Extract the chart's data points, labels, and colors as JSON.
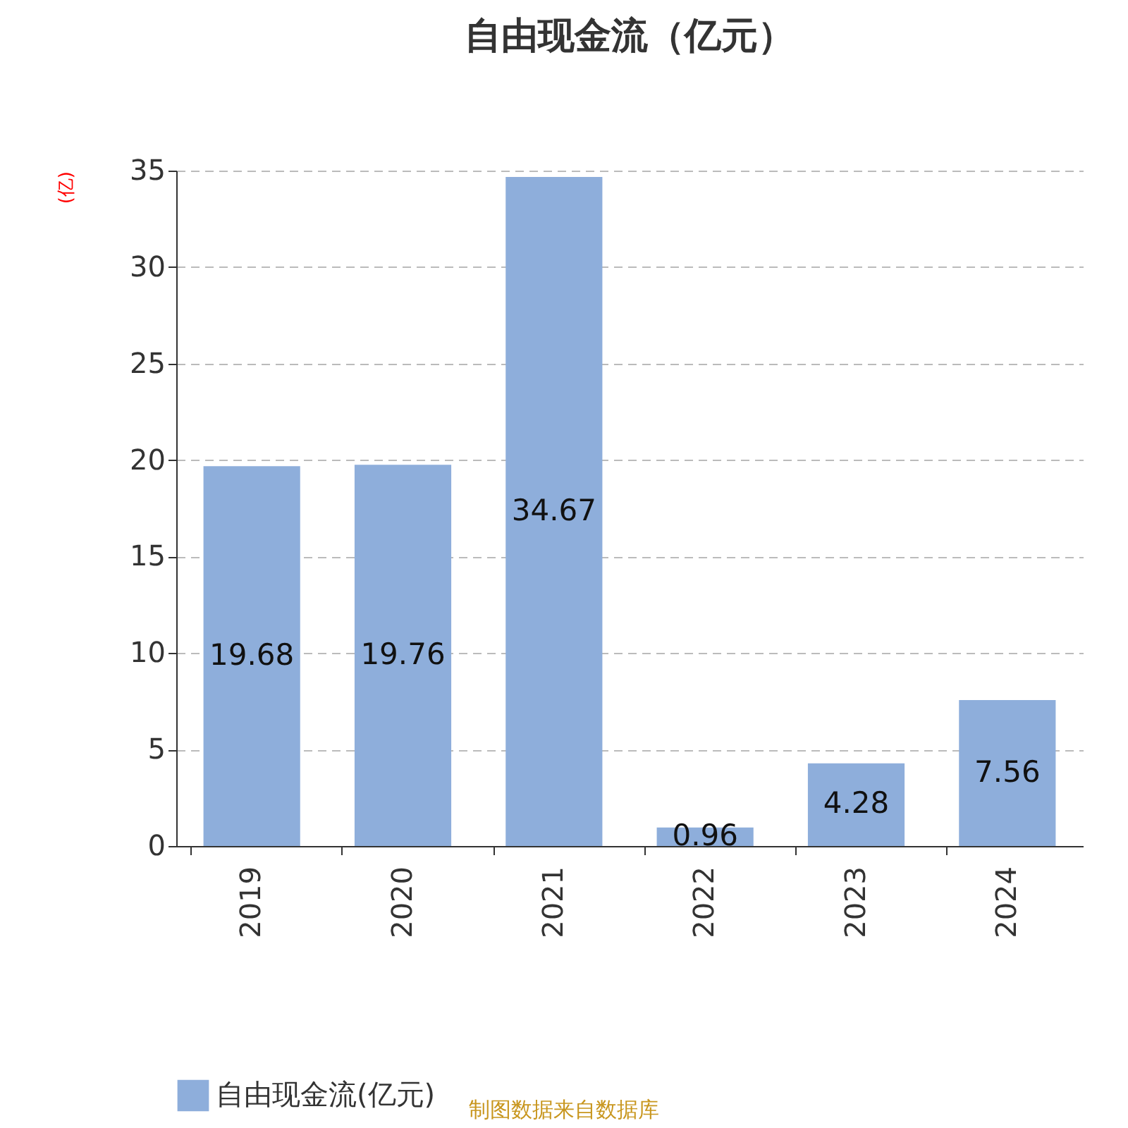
{
  "chart_data": {
    "type": "bar",
    "title": "自由现金流（亿元）",
    "ylabel": "(亿)",
    "categories": [
      "2019",
      "2020",
      "2021",
      "2022",
      "2023",
      "2024"
    ],
    "series": [
      {
        "name": "自由现金流(亿元)",
        "color": "#8eaedb",
        "values": [
          19.68,
          19.76,
          34.67,
          0.96,
          4.28,
          7.56
        ]
      }
    ],
    "ylim": [
      0,
      35
    ],
    "yticks": [
      0,
      5,
      10,
      15,
      20,
      25,
      30,
      35
    ],
    "grid": "y",
    "line_style": "dashed",
    "legend": "bottom",
    "data_labels": true,
    "annotations": [
      "制图数据来自数据库"
    ]
  }
}
